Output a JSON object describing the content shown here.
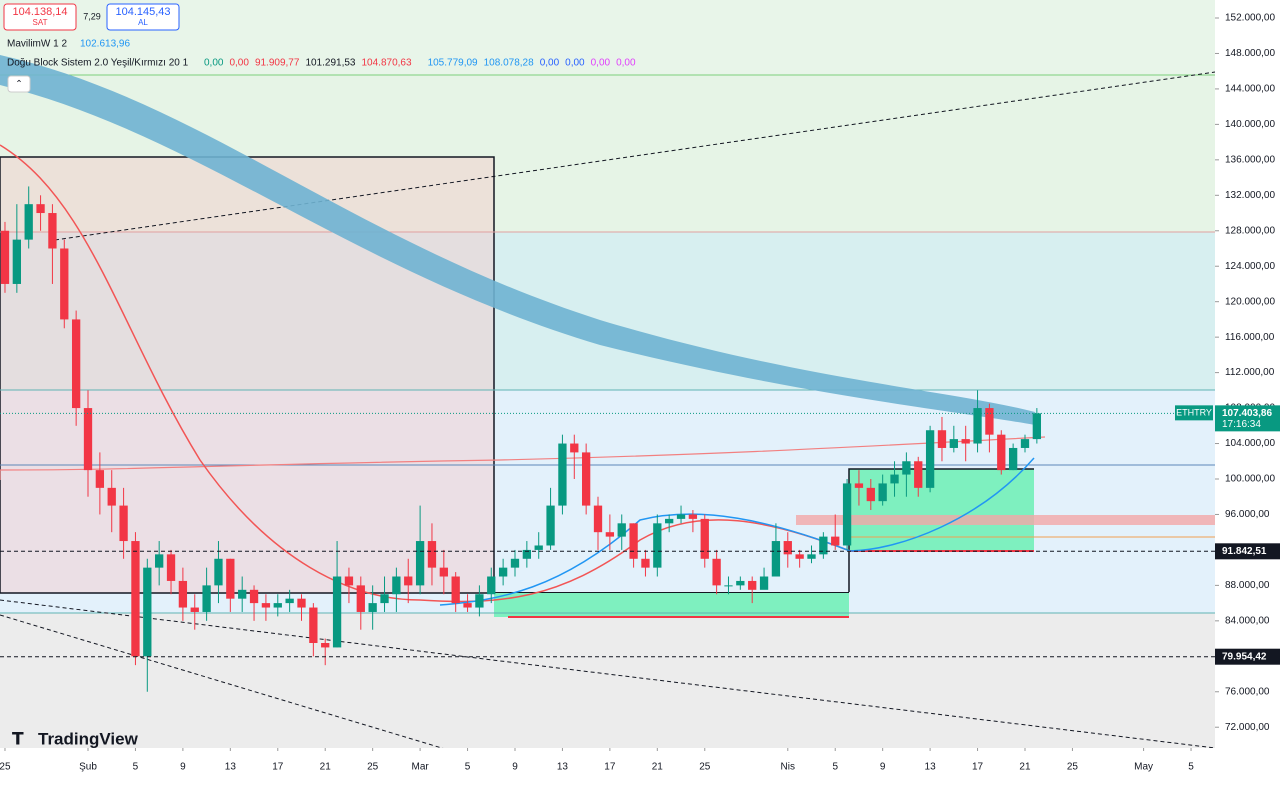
{
  "header": {
    "sell_price": "104.138,14",
    "sell_label": "SAT",
    "spread": "7,29",
    "buy_price": "104.145,43",
    "buy_label": "AL",
    "indicator1": "MavilimW 1 2",
    "indicator1_value": "102.613,96",
    "indicator2": "Doğu Block Sistem 2.0 Yeşil/Kırmızı 20 1",
    "indicator2_values": [
      "0,00",
      "0,00",
      "91.909,77",
      "101.291,53",
      "104.870,63",
      "105.779,09",
      "108.078,28",
      "0,00",
      "0,00",
      "0,00",
      "0,00"
    ],
    "logo": "TradingView"
  },
  "chart_data": {
    "type": "candlestick",
    "symbol": "ETHTRY",
    "countdown": "17:16:34",
    "up_color": "#089981",
    "down_color": "#f23645",
    "x": [
      0,
      1,
      2,
      3,
      4,
      5,
      6,
      7,
      8,
      9,
      10,
      11,
      12,
      13,
      14,
      15,
      16,
      17,
      18,
      19,
      20,
      21,
      22,
      23,
      24,
      25,
      26,
      27,
      28,
      29,
      30,
      31,
      32,
      33,
      34,
      35,
      36,
      37,
      38,
      39,
      40,
      41,
      42,
      43,
      44,
      45,
      46,
      47,
      48,
      49,
      50,
      51,
      52,
      53,
      54,
      55,
      56,
      57,
      58,
      59,
      60,
      61,
      62,
      63,
      64,
      65,
      66,
      67,
      68,
      69,
      70,
      71,
      72,
      73,
      74,
      75,
      76,
      77,
      78,
      79,
      80,
      81,
      82,
      83,
      84,
      85,
      86,
      87
    ],
    "open": [
      128000,
      122000,
      127000,
      131000,
      130000,
      126000,
      118000,
      108000,
      101000,
      99000,
      97000,
      93000,
      80000,
      90000,
      91500,
      88500,
      85500,
      85000,
      88000,
      91000,
      86500,
      87500,
      86000,
      85500,
      86000,
      86500,
      85500,
      81500,
      81000,
      89000,
      88000,
      85000,
      86000,
      87000,
      89000,
      88000,
      93000,
      90000,
      89000,
      86000,
      85500,
      87000,
      89000,
      90000,
      91000,
      92000,
      92500,
      97000,
      104000,
      103000,
      97000,
      94000,
      93500,
      95000,
      91000,
      90000,
      95000,
      95500,
      96000,
      95500,
      91000,
      88000,
      88000,
      88500,
      87500,
      89000,
      93000,
      91500,
      91000,
      91500,
      93500,
      92500,
      99500,
      99000,
      97500,
      99500,
      100500,
      102000,
      99000,
      105500,
      103500,
      104500,
      104000,
      108000,
      105000,
      101000,
      103500,
      104500
    ],
    "high": [
      129000,
      131000,
      133000,
      132000,
      131000,
      127000,
      119000,
      110000,
      103000,
      101000,
      99000,
      94000,
      91000,
      93000,
      92000,
      90000,
      87000,
      90000,
      93000,
      91000,
      89000,
      88000,
      87000,
      87000,
      87500,
      87000,
      86000,
      82000,
      93000,
      90000,
      89000,
      88000,
      89000,
      90000,
      91000,
      97000,
      95000,
      92000,
      89500,
      87000,
      88000,
      90000,
      91000,
      92000,
      93000,
      94000,
      99000,
      105000,
      105000,
      104000,
      98000,
      96000,
      96000,
      95000,
      92000,
      96000,
      96000,
      97000,
      96500,
      96000,
      92000,
      89000,
      89000,
      89000,
      90000,
      95000,
      94000,
      92000,
      92500,
      94000,
      96000,
      100000,
      101000,
      100000,
      100500,
      102000,
      103000,
      102500,
      106000,
      107000,
      106000,
      106000,
      110000,
      108500,
      105500,
      104000,
      105000,
      108000
    ],
    "low": [
      121000,
      121000,
      126000,
      128000,
      122000,
      117000,
      106000,
      98000,
      96000,
      94000,
      91000,
      79000,
      76000,
      88000,
      87000,
      84000,
      83000,
      84000,
      86000,
      85000,
      85000,
      84000,
      84000,
      84500,
      85000,
      84000,
      80000,
      79000,
      81000,
      86000,
      83000,
      83000,
      85000,
      85000,
      86000,
      87000,
      88000,
      87000,
      85000,
      85000,
      84500,
      86000,
      88000,
      89000,
      90000,
      91000,
      92000,
      96000,
      100000,
      96000,
      92000,
      92000,
      92000,
      90000,
      89000,
      89000,
      94000,
      95000,
      94000,
      90000,
      87000,
      87000,
      87500,
      86000,
      88000,
      89000,
      90000,
      90000,
      90500,
      91000,
      92000,
      92000,
      97000,
      96500,
      97000,
      98000,
      98000,
      98000,
      98500,
      102000,
      103000,
      102000,
      103000,
      103000,
      100500,
      101000,
      103000,
      104000
    ],
    "close": [
      122000,
      127000,
      131000,
      130000,
      126000,
      118000,
      108000,
      101000,
      99000,
      97000,
      93000,
      80000,
      90000,
      91500,
      88500,
      85500,
      85000,
      88000,
      91000,
      86500,
      87500,
      86000,
      85500,
      86000,
      86500,
      85500,
      81500,
      81000,
      89000,
      88000,
      85000,
      86000,
      87000,
      89000,
      88000,
      93000,
      90000,
      89000,
      86000,
      85500,
      87000,
      89000,
      90000,
      91000,
      92000,
      92500,
      97000,
      104000,
      103000,
      97000,
      94000,
      93500,
      95000,
      91000,
      90000,
      95000,
      95500,
      96000,
      95500,
      91000,
      88000,
      88000,
      88500,
      87500,
      89000,
      93000,
      91500,
      91000,
      91500,
      93500,
      92500,
      99500,
      99000,
      97500,
      99500,
      100500,
      102000,
      99000,
      105500,
      103500,
      104500,
      104000,
      108000,
      105000,
      101000,
      103500,
      104500,
      107403.86
    ],
    "xlim": [
      -0.42,
      102.02
    ],
    "xticks": [
      {
        "value": 0,
        "label": "25"
      },
      {
        "value": 7,
        "label": "Şub"
      },
      {
        "value": 11,
        "label": "5"
      },
      {
        "value": 15,
        "label": "9"
      },
      {
        "value": 19,
        "label": "13"
      },
      {
        "value": 23,
        "label": "17"
      },
      {
        "value": 27,
        "label": "21"
      },
      {
        "value": 31,
        "label": "25"
      },
      {
        "value": 35,
        "label": "Mar"
      },
      {
        "value": 39,
        "label": "5"
      },
      {
        "value": 43,
        "label": "9"
      },
      {
        "value": 47,
        "label": "13"
      },
      {
        "value": 51,
        "label": "17"
      },
      {
        "value": 55,
        "label": "21"
      },
      {
        "value": 59,
        "label": "25"
      },
      {
        "value": 66,
        "label": "Nis"
      },
      {
        "value": 70,
        "label": "5"
      },
      {
        "value": 74,
        "label": "9"
      },
      {
        "value": 78,
        "label": "13"
      },
      {
        "value": 82,
        "label": "17"
      },
      {
        "value": 86,
        "label": "21"
      },
      {
        "value": 90,
        "label": "25"
      },
      {
        "value": 96,
        "label": "May"
      },
      {
        "value": 100,
        "label": "5"
      }
    ],
    "ylim": [
      69656,
      154030
    ],
    "yticks": [
      {
        "value": 152000,
        "label": "152.000,00"
      },
      {
        "value": 148000,
        "label": "148.000,00"
      },
      {
        "value": 144000,
        "label": "144.000,00"
      },
      {
        "value": 140000,
        "label": "140.000,00"
      },
      {
        "value": 136000,
        "label": "136.000,00"
      },
      {
        "value": 132000,
        "label": "132.000,00"
      },
      {
        "value": 128000,
        "label": "128.000,00"
      },
      {
        "value": 124000,
        "label": "124.000,00"
      },
      {
        "value": 120000,
        "label": "120.000,00"
      },
      {
        "value": 116000,
        "label": "116.000,00"
      },
      {
        "value": 112000,
        "label": "112.000,00"
      },
      {
        "value": 108000,
        "label": "108.000,00"
      },
      {
        "value": 104000,
        "label": "104.000,00"
      },
      {
        "value": 100000,
        "label": "100.000,00"
      },
      {
        "value": 96000,
        "label": "96.000,00"
      },
      {
        "value": 92000,
        "label": "92.000,00"
      },
      {
        "value": 88000,
        "label": "88.000,00"
      },
      {
        "value": 84000,
        "label": "84.000,00"
      },
      {
        "value": 80000,
        "label": "80.000,00"
      },
      {
        "value": 76000,
        "label": "76.000,00"
      },
      {
        "value": 72000,
        "label": "72.000,00"
      }
    ],
    "price_lines": [
      {
        "value": 107403.86,
        "label": "107.403,86",
        "color": "#089981"
      },
      {
        "value": 91842.51,
        "label": "91.842,51",
        "color": "#131722"
      },
      {
        "value": 79954.42,
        "label": "79.954,42",
        "color": "#131722"
      }
    ]
  }
}
